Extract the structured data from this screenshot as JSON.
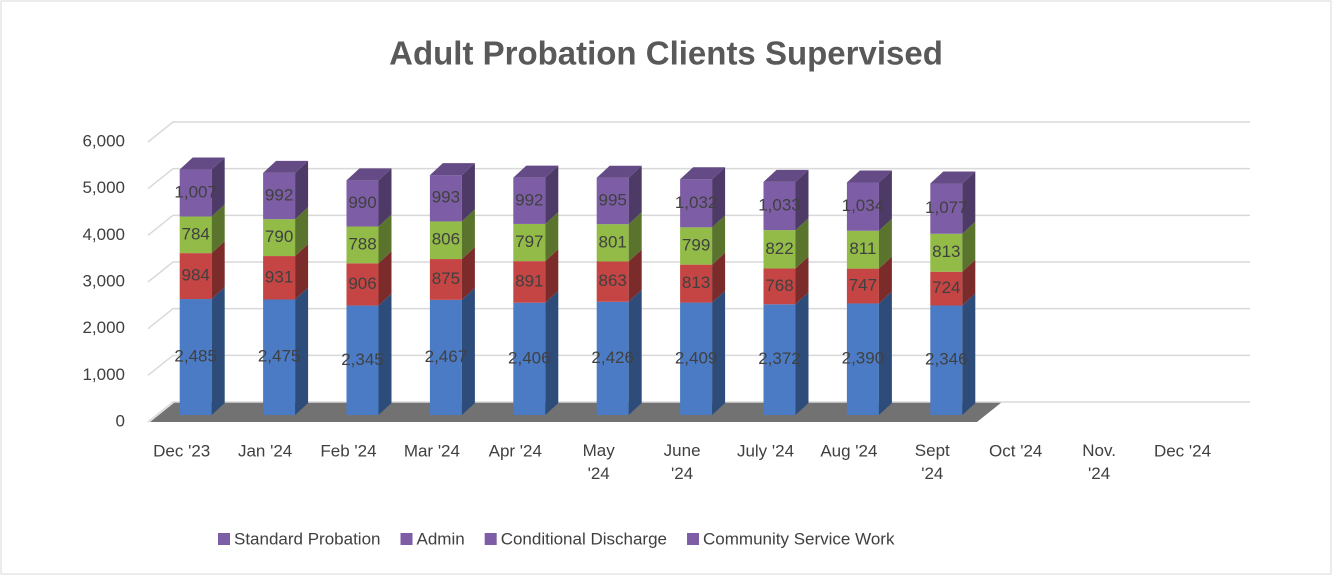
{
  "chart_data": {
    "type": "stacked-bar-3d",
    "title": "Adult Probation Clients Supervised",
    "categories": [
      "Dec '23",
      "Jan '24",
      "Feb '24",
      "Mar '24",
      "Apr '24",
      "May '24",
      "June '24",
      "July '24",
      "Aug '24",
      "Sept '24",
      "Oct '24",
      "Nov. '24",
      "Dec '24"
    ],
    "series": [
      {
        "name": "Standard Probation",
        "color": "#4a7bc4",
        "values": [
          2485,
          2475,
          2345,
          2467,
          2406,
          2426,
          2409,
          2372,
          2390,
          2346,
          null,
          null,
          null
        ],
        "value_labels": [
          "2,485",
          "2,475",
          "2,345",
          "2,467",
          "2,406",
          "2,426",
          "2,409",
          "2,372",
          "2,390",
          "2,346",
          null,
          null,
          null
        ]
      },
      {
        "name": "Admin",
        "color": "#c44543",
        "values": [
          984,
          931,
          906,
          875,
          891,
          863,
          813,
          768,
          747,
          724,
          null,
          null,
          null
        ]
      },
      {
        "name": "Conditional Discharge",
        "color": "#92bb48",
        "values": [
          784,
          790,
          788,
          806,
          797,
          801,
          799,
          822,
          811,
          813,
          null,
          null,
          null
        ]
      },
      {
        "name": "Community Service Work",
        "color": "#7d5ea6",
        "values": [
          1007,
          992,
          990,
          993,
          992,
          995,
          1032,
          1033,
          1034,
          1077,
          null,
          null,
          null
        ],
        "value_labels": [
          "1,007",
          "992",
          "990",
          "993",
          "992",
          "995",
          "1,032",
          "1,033",
          "1,034",
          "1,077",
          null,
          null,
          null
        ]
      }
    ],
    "legend_color": "#7d5ea6",
    "ylim": [
      0,
      6000
    ],
    "yticks": [
      0,
      {
        "value": 1000,
        "label": "1,000"
      },
      {
        "value": 2000,
        "label": "2,000"
      },
      {
        "value": 3000,
        "label": "3,000"
      },
      {
        "value": 4000,
        "label": "4,000"
      },
      {
        "value": 5000,
        "label": "5,000"
      },
      {
        "value": 6000,
        "label": "6,000"
      }
    ],
    "grid": true,
    "legend": "bottom"
  }
}
